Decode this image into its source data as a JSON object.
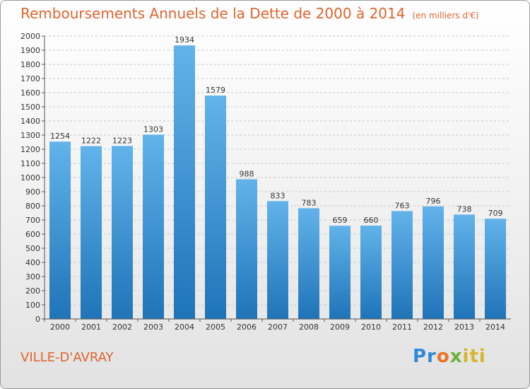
{
  "header": {
    "title": "Remboursements Annuels de la Dette de 2000 à 2014",
    "subtitle": "(en milliers d'€)"
  },
  "footer": {
    "city": "VILLE-D'AVRAY",
    "logo": "Proxiti",
    "logo_colors": [
      "#2e8ad8",
      "#e8732a",
      "#6ab23a",
      "#d8b52a"
    ]
  },
  "chart_data": {
    "type": "bar",
    "title": "Remboursements Annuels de la Dette de 2000 à 2014",
    "subtitle": "(en milliers d'€)",
    "categories": [
      "2000",
      "2001",
      "2002",
      "2003",
      "2004",
      "2005",
      "2006",
      "2007",
      "2008",
      "2009",
      "2010",
      "2011",
      "2012",
      "2013",
      "2014"
    ],
    "values": [
      1254,
      1222,
      1223,
      1303,
      1934,
      1579,
      988,
      833,
      783,
      659,
      660,
      763,
      796,
      738,
      709
    ],
    "ylim": [
      0,
      2000
    ],
    "ytick_step": 100,
    "grid": true,
    "bar_color_top": "#62b3ea",
    "bar_color_bottom": "#1f74b8"
  }
}
